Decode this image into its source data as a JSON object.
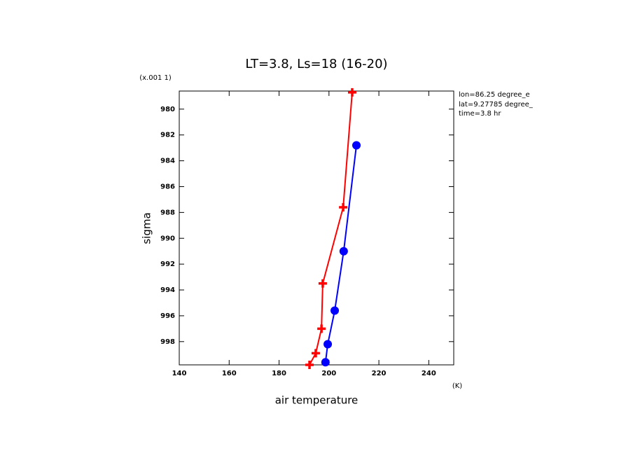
{
  "chart_data": {
    "type": "profile",
    "title": "LT=3.8, Ls=18 (16-20)",
    "x_label": "air temperature",
    "x_unit": "(K)",
    "y_label": "sigma",
    "y_unit": "(x.001 1)",
    "annotations": [
      "lon=86.25 degree_e",
      "lat=9.27785 degree_",
      "time=3.8 hr"
    ],
    "xlim": [
      140,
      250
    ],
    "xticks": [
      140,
      160,
      180,
      200,
      220,
      240
    ],
    "ylim": [
      999.8,
      978.6
    ],
    "yticks": [
      980,
      982,
      984,
      986,
      988,
      990,
      992,
      994,
      996,
      998
    ],
    "series": [
      {
        "color": "#ff0000",
        "marker": "cross",
        "x": [
          209.3,
          205.7,
          197.5,
          197.0,
          194.7,
          192.2
        ],
        "y": [
          978.7,
          987.6,
          993.5,
          997.0,
          998.9,
          999.8
        ]
      },
      {
        "color": "#0000ff",
        "marker": "circle",
        "x": [
          211.0,
          205.9,
          202.3,
          199.5,
          198.6
        ],
        "y": [
          982.8,
          991.0,
          995.6,
          998.2,
          999.6
        ]
      }
    ]
  }
}
